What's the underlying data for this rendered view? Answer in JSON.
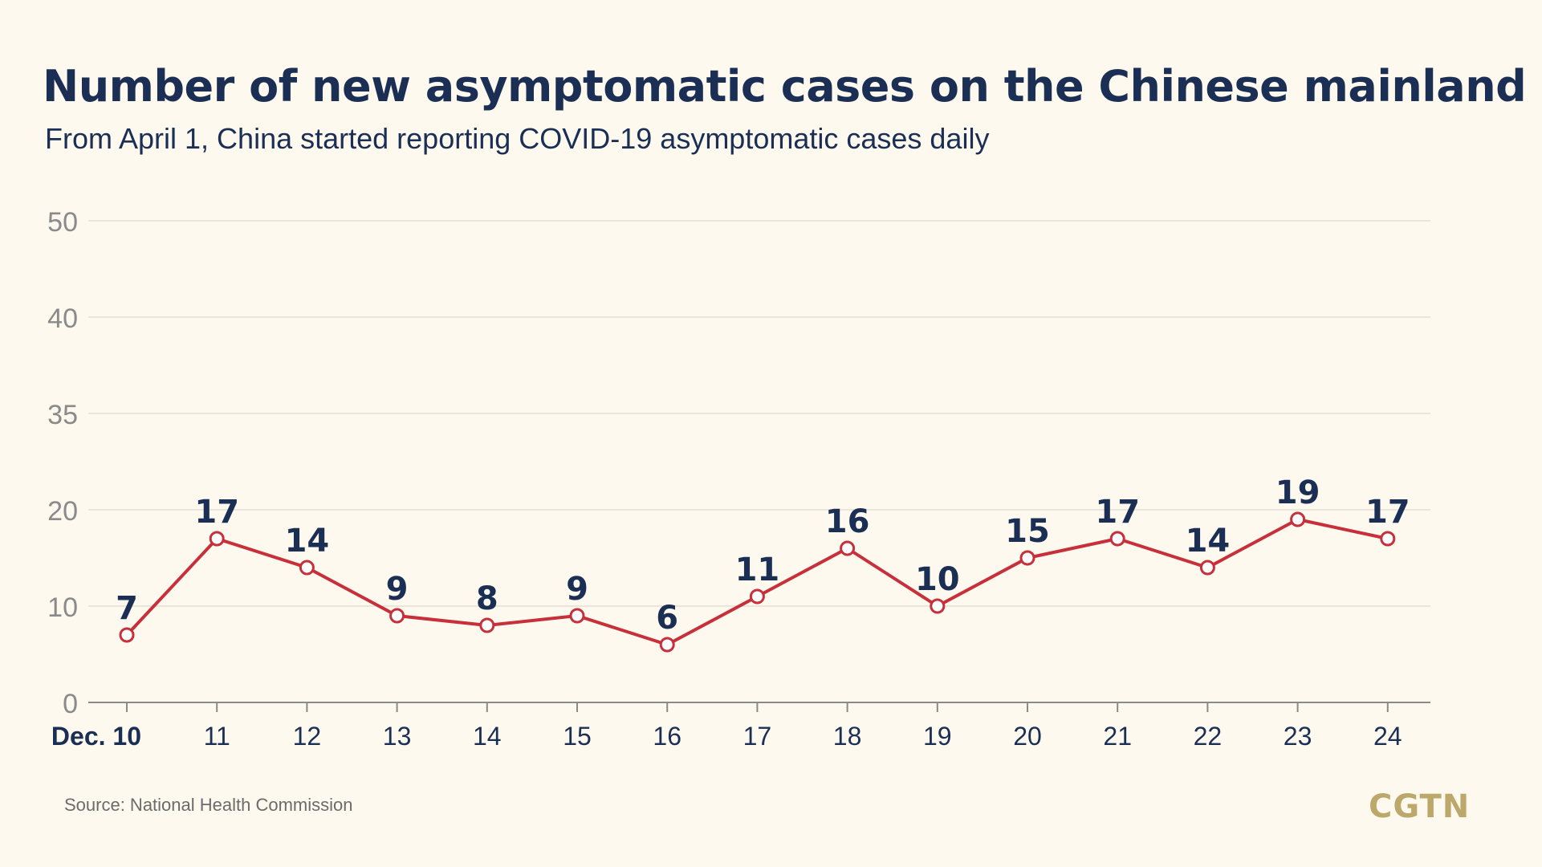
{
  "title": "Number of new asymptomatic cases on the Chinese mainland",
  "subtitle": "From April 1, China started reporting COVID-19 asymptomatic cases daily",
  "source": "Source: National Health Commission",
  "logo_text": "CGTN",
  "colors": {
    "background": "#fdf9ee",
    "line": "#c7303a",
    "text_dark": "#1b2f55",
    "axis_text": "#8a8a8a",
    "grid": "#e3dfd3",
    "logo": "#bca86a"
  },
  "chart_data": {
    "type": "line",
    "title": "Number of new asymptomatic cases on the Chinese mainland",
    "subtitle": "From April 1, China started reporting COVID-19 asymptomatic cases daily",
    "xlabel": "",
    "ylabel": "",
    "categories": [
      "Dec. 10",
      "11",
      "12",
      "13",
      "14",
      "15",
      "16",
      "17",
      "18",
      "19",
      "20",
      "21",
      "22",
      "23",
      "24"
    ],
    "values": [
      7,
      17,
      14,
      9,
      8,
      9,
      6,
      11,
      16,
      10,
      15,
      17,
      14,
      19,
      17
    ],
    "y_ticks": [
      0,
      10,
      20,
      35,
      40,
      50
    ],
    "data_labels": true,
    "grid": true,
    "legend": "none"
  }
}
